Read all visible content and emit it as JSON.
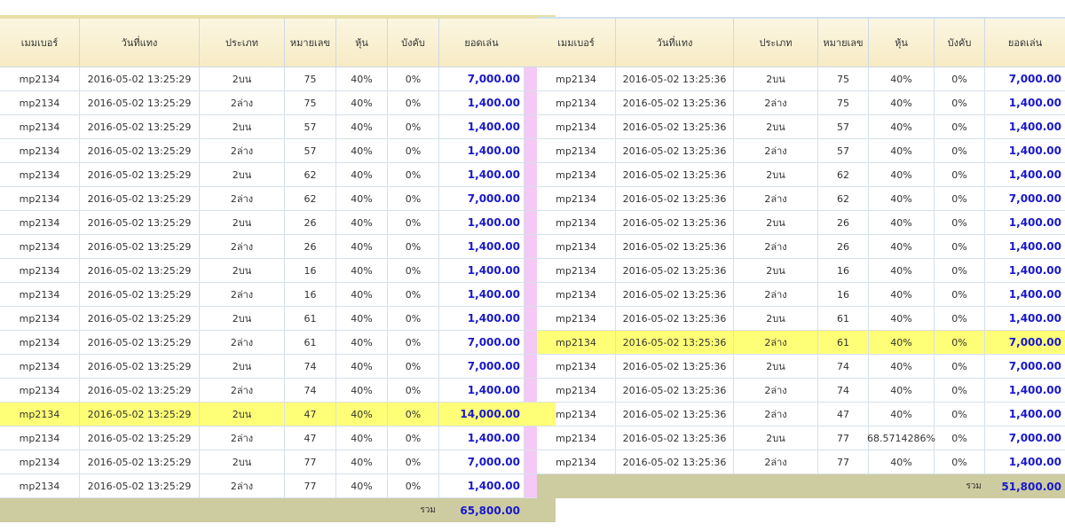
{
  "headers": [
    "เมมเบอร์",
    "วันที่แทง",
    "ประเภท",
    "หมายเลข",
    "หุ้น",
    "บังคับ",
    "ยอดเล่น"
  ],
  "total_label": "รวม",
  "left_table": {
    "rows": [
      {
        "member": "mp2134",
        "date": "2016-05-02 13:25:29",
        "type": "2บน",
        "number": "75",
        "share": "40%",
        "forced": "0%",
        "amount": "7,000.00",
        "hl": false
      },
      {
        "member": "mp2134",
        "date": "2016-05-02 13:25:29",
        "type": "2ล่าง",
        "number": "75",
        "share": "40%",
        "forced": "0%",
        "amount": "1,400.00",
        "hl": false
      },
      {
        "member": "mp2134",
        "date": "2016-05-02 13:25:29",
        "type": "2บน",
        "number": "57",
        "share": "40%",
        "forced": "0%",
        "amount": "1,400.00",
        "hl": false
      },
      {
        "member": "mp2134",
        "date": "2016-05-02 13:25:29",
        "type": "2ล่าง",
        "number": "57",
        "share": "40%",
        "forced": "0%",
        "amount": "1,400.00",
        "hl": false
      },
      {
        "member": "mp2134",
        "date": "2016-05-02 13:25:29",
        "type": "2บน",
        "number": "62",
        "share": "40%",
        "forced": "0%",
        "amount": "1,400.00",
        "hl": false
      },
      {
        "member": "mp2134",
        "date": "2016-05-02 13:25:29",
        "type": "2ล่าง",
        "number": "62",
        "share": "40%",
        "forced": "0%",
        "amount": "7,000.00",
        "hl": false
      },
      {
        "member": "mp2134",
        "date": "2016-05-02 13:25:29",
        "type": "2บน",
        "number": "26",
        "share": "40%",
        "forced": "0%",
        "amount": "1,400.00",
        "hl": false
      },
      {
        "member": "mp2134",
        "date": "2016-05-02 13:25:29",
        "type": "2ล่าง",
        "number": "26",
        "share": "40%",
        "forced": "0%",
        "amount": "1,400.00",
        "hl": false
      },
      {
        "member": "mp2134",
        "date": "2016-05-02 13:25:29",
        "type": "2บน",
        "number": "16",
        "share": "40%",
        "forced": "0%",
        "amount": "1,400.00",
        "hl": false
      },
      {
        "member": "mp2134",
        "date": "2016-05-02 13:25:29",
        "type": "2ล่าง",
        "number": "16",
        "share": "40%",
        "forced": "0%",
        "amount": "1,400.00",
        "hl": false
      },
      {
        "member": "mp2134",
        "date": "2016-05-02 13:25:29",
        "type": "2บน",
        "number": "61",
        "share": "40%",
        "forced": "0%",
        "amount": "1,400.00",
        "hl": false
      },
      {
        "member": "mp2134",
        "date": "2016-05-02 13:25:29",
        "type": "2ล่าง",
        "number": "61",
        "share": "40%",
        "forced": "0%",
        "amount": "7,000.00",
        "hl": false
      },
      {
        "member": "mp2134",
        "date": "2016-05-02 13:25:29",
        "type": "2บน",
        "number": "74",
        "share": "40%",
        "forced": "0%",
        "amount": "7,000.00",
        "hl": false
      },
      {
        "member": "mp2134",
        "date": "2016-05-02 13:25:29",
        "type": "2ล่าง",
        "number": "74",
        "share": "40%",
        "forced": "0%",
        "amount": "1,400.00",
        "hl": false
      },
      {
        "member": "mp2134",
        "date": "2016-05-02 13:25:29",
        "type": "2บน",
        "number": "47",
        "share": "40%",
        "forced": "0%",
        "amount": "14,000.00",
        "hl": true
      },
      {
        "member": "mp2134",
        "date": "2016-05-02 13:25:29",
        "type": "2ล่าง",
        "number": "47",
        "share": "40%",
        "forced": "0%",
        "amount": "1,400.00",
        "hl": false
      },
      {
        "member": "mp2134",
        "date": "2016-05-02 13:25:29",
        "type": "2บน",
        "number": "77",
        "share": "40%",
        "forced": "0%",
        "amount": "7,000.00",
        "hl": false
      },
      {
        "member": "mp2134",
        "date": "2016-05-02 13:25:29",
        "type": "2ล่าง",
        "number": "77",
        "share": "40%",
        "forced": "0%",
        "amount": "1,400.00",
        "hl": false
      }
    ],
    "total": "65,800.00"
  },
  "right_table": {
    "rows": [
      {
        "member": "mp2134",
        "date": "2016-05-02 13:25:36",
        "type": "2บน",
        "number": "75",
        "share": "40%",
        "forced": "0%",
        "amount": "7,000.00",
        "hl": false
      },
      {
        "member": "mp2134",
        "date": "2016-05-02 13:25:36",
        "type": "2ล่าง",
        "number": "75",
        "share": "40%",
        "forced": "0%",
        "amount": "1,400.00",
        "hl": false
      },
      {
        "member": "mp2134",
        "date": "2016-05-02 13:25:36",
        "type": "2บน",
        "number": "57",
        "share": "40%",
        "forced": "0%",
        "amount": "1,400.00",
        "hl": false
      },
      {
        "member": "mp2134",
        "date": "2016-05-02 13:25:36",
        "type": "2ล่าง",
        "number": "57",
        "share": "40%",
        "forced": "0%",
        "amount": "1,400.00",
        "hl": false
      },
      {
        "member": "mp2134",
        "date": "2016-05-02 13:25:36",
        "type": "2บน",
        "number": "62",
        "share": "40%",
        "forced": "0%",
        "amount": "1,400.00",
        "hl": false
      },
      {
        "member": "mp2134",
        "date": "2016-05-02 13:25:36",
        "type": "2ล่าง",
        "number": "62",
        "share": "40%",
        "forced": "0%",
        "amount": "7,000.00",
        "hl": false
      },
      {
        "member": "mp2134",
        "date": "2016-05-02 13:25:36",
        "type": "2บน",
        "number": "26",
        "share": "40%",
        "forced": "0%",
        "amount": "1,400.00",
        "hl": false
      },
      {
        "member": "mp2134",
        "date": "2016-05-02 13:25:36",
        "type": "2ล่าง",
        "number": "26",
        "share": "40%",
        "forced": "0%",
        "amount": "1,400.00",
        "hl": false
      },
      {
        "member": "mp2134",
        "date": "2016-05-02 13:25:36",
        "type": "2บน",
        "number": "16",
        "share": "40%",
        "forced": "0%",
        "amount": "1,400.00",
        "hl": false
      },
      {
        "member": "mp2134",
        "date": "2016-05-02 13:25:36",
        "type": "2ล่าง",
        "number": "16",
        "share": "40%",
        "forced": "0%",
        "amount": "1,400.00",
        "hl": false
      },
      {
        "member": "mp2134",
        "date": "2016-05-02 13:25:36",
        "type": "2บน",
        "number": "61",
        "share": "40%",
        "forced": "0%",
        "amount": "1,400.00",
        "hl": false
      },
      {
        "member": "mp2134",
        "date": "2016-05-02 13:25:36",
        "type": "2ล่าง",
        "number": "61",
        "share": "40%",
        "forced": "0%",
        "amount": "7,000.00",
        "hl": true
      },
      {
        "member": "mp2134",
        "date": "2016-05-02 13:25:36",
        "type": "2บน",
        "number": "74",
        "share": "40%",
        "forced": "0%",
        "amount": "7,000.00",
        "hl": false
      },
      {
        "member": "mp2134",
        "date": "2016-05-02 13:25:36",
        "type": "2ล่าง",
        "number": "74",
        "share": "40%",
        "forced": "0%",
        "amount": "1,400.00",
        "hl": false
      },
      {
        "member": "mp2134",
        "date": "2016-05-02 13:25:36",
        "type": "2ล่าง",
        "number": "47",
        "share": "40%",
        "forced": "0%",
        "amount": "1,400.00",
        "hl": false
      },
      {
        "member": "mp2134",
        "date": "2016-05-02 13:25:36",
        "type": "2บน",
        "number": "77",
        "share": "68.5714286%",
        "forced": "0%",
        "amount": "7,000.00",
        "hl": false
      },
      {
        "member": "mp2134",
        "date": "2016-05-02 13:25:36",
        "type": "2ล่าง",
        "number": "77",
        "share": "40%",
        "forced": "0%",
        "amount": "1,400.00",
        "hl": false
      }
    ],
    "total": "51,800.00"
  }
}
